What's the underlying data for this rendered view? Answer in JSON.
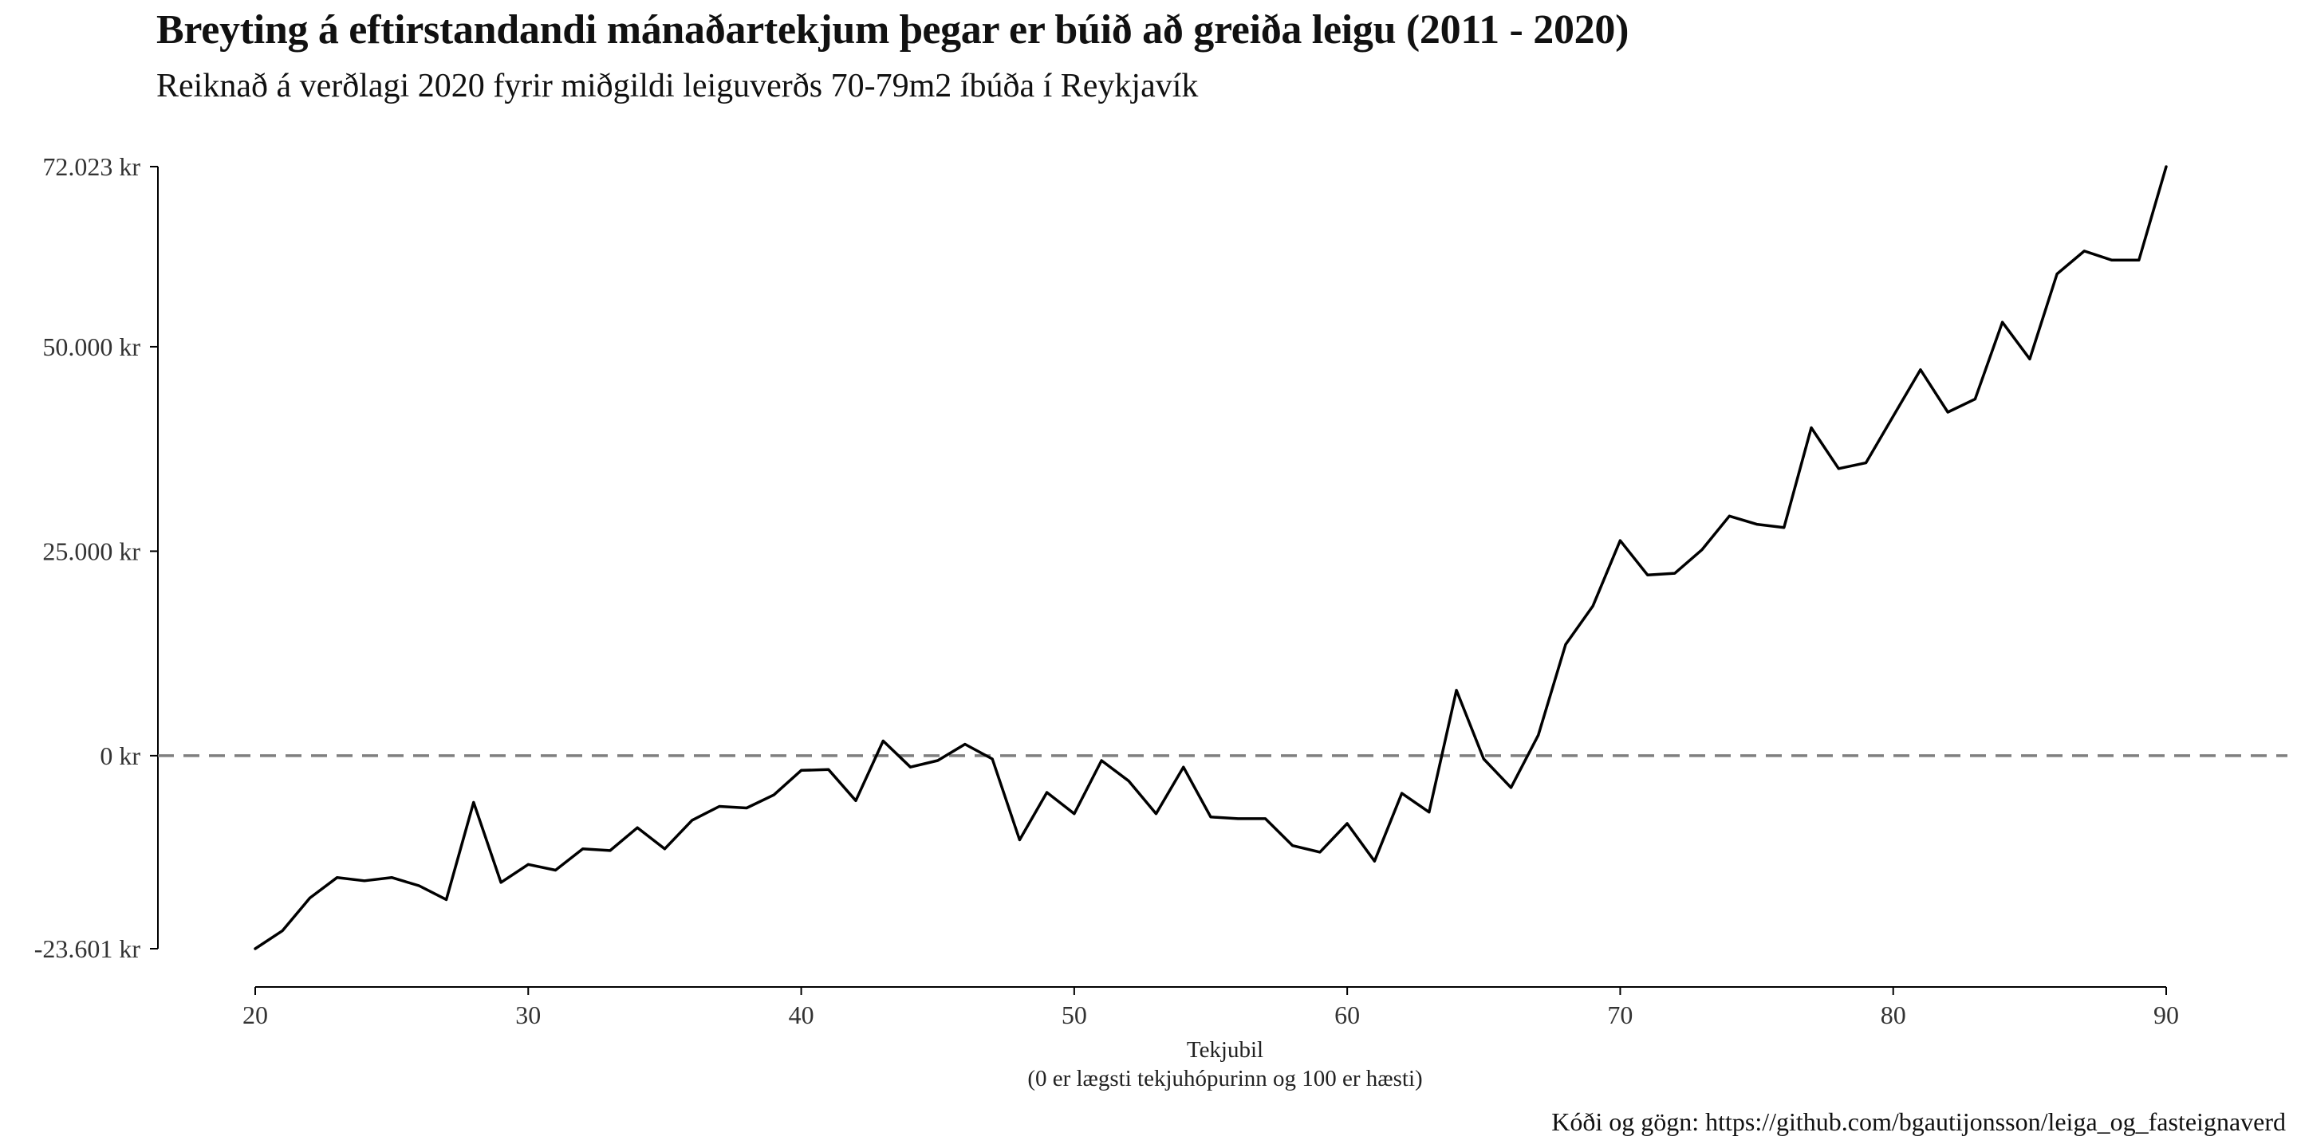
{
  "chart_data": {
    "type": "line",
    "title": "Breyting á eftirstandandi mánaðartekjum þegar er búið að greiða leigu (2011 - 2020)",
    "subtitle": "Reiknað á verðlagi 2020 fyrir miðgildi leiguverðs 70-79m2 íbúða í Reykjavík",
    "xlabel": "Tekjubil",
    "xlabel_note": "(0 er lægsti tekjuhópurinn og 100 er hæsti)",
    "caption": "Kóði og gögn: https://github.com/bgautijonsson/leiga_og_fasteignaverd",
    "xlim": [
      20,
      90
    ],
    "ylim": [
      -23601,
      72023
    ],
    "x_ticks": [
      20,
      30,
      40,
      50,
      60,
      70,
      80,
      90
    ],
    "x_tick_labels": [
      "20",
      "30",
      "40",
      "50",
      "60",
      "70",
      "80",
      "90"
    ],
    "y_ticks": [
      -23601,
      0,
      25000,
      50000,
      72023
    ],
    "y_tick_labels": [
      "-23.601 kr",
      "0 kr",
      "25.000 kr",
      "50.000 kr",
      "72.023 kr"
    ],
    "reference_line": {
      "y": 0,
      "style": "dashed",
      "color": "#7f7f7f"
    },
    "grid": false,
    "line_color": "#000000",
    "series": [
      {
        "x": [
          20,
          21,
          22,
          23,
          24,
          25,
          26,
          27,
          28,
          29,
          30,
          31,
          32,
          33,
          34,
          35,
          36,
          37,
          38,
          39,
          40,
          41,
          42,
          43,
          44,
          45,
          46,
          47,
          48,
          49,
          50,
          51,
          52,
          53,
          54,
          55,
          56,
          57,
          58,
          59,
          60,
          61,
          62,
          63,
          64,
          65,
          66,
          67,
          68,
          69,
          70,
          71,
          72,
          73,
          74,
          75,
          76,
          77,
          78,
          79,
          80,
          81,
          82,
          83,
          84,
          85,
          86,
          87,
          88,
          89,
          90
        ],
        "values": [
          -23601,
          -21400,
          -17400,
          -14900,
          -15300,
          -14900,
          -15900,
          -17600,
          -5700,
          -15500,
          -13300,
          -14000,
          -11400,
          -11600,
          -8800,
          -11400,
          -7900,
          -6200,
          -6400,
          -4800,
          -1800,
          -1700,
          -5500,
          1800,
          -1400,
          -600,
          1400,
          -400,
          -10300,
          -4500,
          -7100,
          -600,
          -3100,
          -7100,
          -1400,
          -7500,
          -7700,
          -7700,
          -11000,
          -11800,
          -8300,
          -12900,
          -4600,
          -6900,
          8000,
          -400,
          -3900,
          2500,
          13600,
          18300,
          26300,
          22100,
          22300,
          25200,
          29300,
          28300,
          27900,
          40100,
          35100,
          35800,
          41500,
          47200,
          42000,
          43600,
          53000,
          48500,
          58900,
          61700,
          60600,
          60600,
          72023
        ]
      }
    ]
  }
}
